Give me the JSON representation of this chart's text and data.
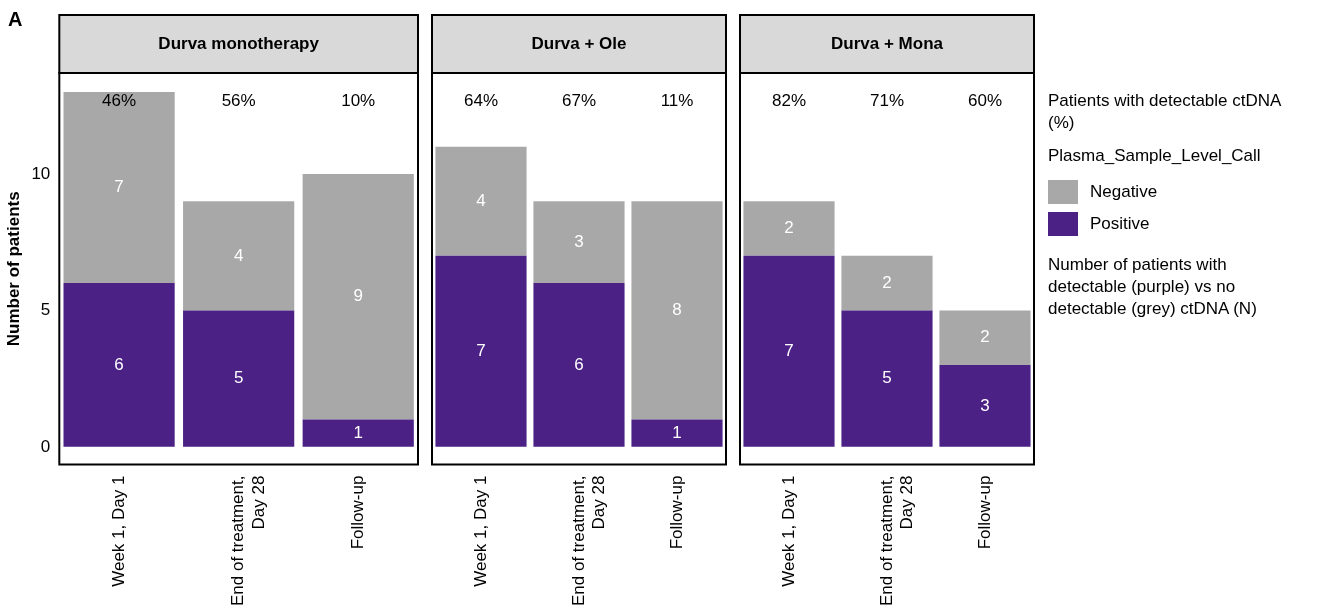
{
  "chart_data": [
    {
      "type": "bar",
      "stacked": true,
      "title": "Durva monotherapy",
      "ylabel": "Number of patients",
      "categories": [
        "Week 1, Day 1",
        "End of treatment, Day 28",
        "Follow-up"
      ],
      "series": [
        {
          "color": "#4b2185",
          "values": [
            6,
            5,
            1
          ]
        },
        {
          "color": "#a8a8a8",
          "values": [
            7,
            4,
            9
          ]
        }
      ],
      "ylim": [
        -0.65,
        13.7
      ],
      "yticks": [
        0,
        5,
        10
      ],
      "grid": false,
      "data_labels": true,
      "annotations": [
        "46%",
        "56%",
        "10%",
        "A"
      ]
    },
    {
      "type": "bar",
      "stacked": true,
      "title": "Durva + Ole",
      "categories": [
        "Week 1, Day 1",
        "End of treatment, Day 28",
        "Follow-up"
      ],
      "series": [
        {
          "color": "#4b2185",
          "values": [
            7,
            6,
            1
          ]
        },
        {
          "color": "#a8a8a8",
          "values": [
            4,
            3,
            8
          ]
        }
      ],
      "ylim": [
        -0.65,
        13.7
      ],
      "tick_labels": "x",
      "grid": false,
      "data_labels": true,
      "annotations": [
        "64%",
        "67%",
        "11%"
      ]
    },
    {
      "type": "bar",
      "stacked": true,
      "title": "Durva + Mona",
      "categories": [
        "Week 1, Day 1",
        "End of treatment, Day 28",
        "Follow-up"
      ],
      "series": [
        {
          "name": "Positive",
          "color": "#4b2185",
          "values": [
            7,
            5,
            3
          ]
        },
        {
          "name": "Negative",
          "color": "#a8a8a8",
          "values": [
            2,
            2,
            2
          ]
        }
      ],
      "ylim": [
        -0.65,
        13.7
      ],
      "tick_labels": "x",
      "grid": false,
      "data_labels": true,
      "legend": "right",
      "legend_title": "Plasma_Sample_Level_Call",
      "annotations": [
        "82%",
        "71%",
        "60%",
        "Patients with detectable ctDNA (%)",
        "Number of patients with detectable (purple) vs no detectable (grey) ctDNA (N)"
      ]
    }
  ]
}
